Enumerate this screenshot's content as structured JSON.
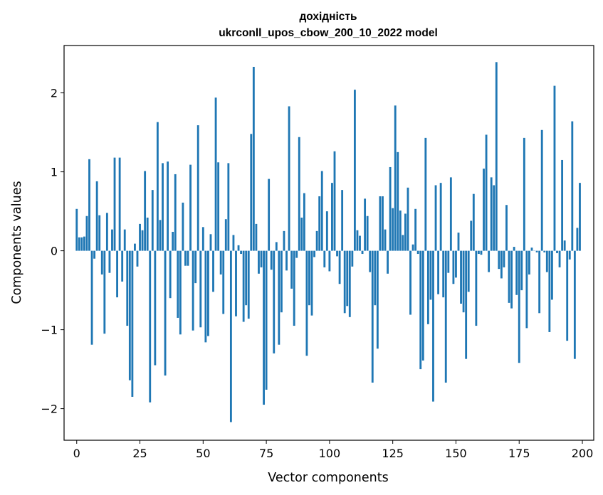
{
  "chart_data": {
    "type": "bar",
    "title": "дохідність",
    "subtitle": "ukrconll_upos_cbow_200_10_2022 model",
    "xlabel": "Vector components",
    "ylabel": "Components values",
    "xlim": [
      -5,
      204.5
    ],
    "ylim": [
      -2.4,
      2.6
    ],
    "xticks": [
      0,
      25,
      50,
      75,
      100,
      125,
      150,
      175,
      200
    ],
    "yticks": [
      -2,
      -1,
      0,
      1,
      2
    ],
    "ytick_labels": [
      "−2",
      "−1",
      "0",
      "1",
      "2"
    ],
    "grid": false,
    "bar_color": "#1f77b4",
    "x": [
      0,
      1,
      2,
      3,
      4,
      5,
      6,
      7,
      8,
      9,
      10,
      11,
      12,
      13,
      14,
      15,
      16,
      17,
      18,
      19,
      20,
      21,
      22,
      23,
      24,
      25,
      26,
      27,
      28,
      29,
      30,
      31,
      32,
      33,
      34,
      35,
      36,
      37,
      38,
      39,
      40,
      41,
      42,
      43,
      44,
      45,
      46,
      47,
      48,
      49,
      50,
      51,
      52,
      53,
      54,
      55,
      56,
      57,
      58,
      59,
      60,
      61,
      62,
      63,
      64,
      65,
      66,
      67,
      68,
      69,
      70,
      71,
      72,
      73,
      74,
      75,
      76,
      77,
      78,
      79,
      80,
      81,
      82,
      83,
      84,
      85,
      86,
      87,
      88,
      89,
      90,
      91,
      92,
      93,
      94,
      95,
      96,
      97,
      98,
      99,
      100,
      101,
      102,
      103,
      104,
      105,
      106,
      107,
      108,
      109,
      110,
      111,
      112,
      113,
      114,
      115,
      116,
      117,
      118,
      119,
      120,
      121,
      122,
      123,
      124,
      125,
      126,
      127,
      128,
      129,
      130,
      131,
      132,
      133,
      134,
      135,
      136,
      137,
      138,
      139,
      140,
      141,
      142,
      143,
      144,
      145,
      146,
      147,
      148,
      149,
      150,
      151,
      152,
      153,
      154,
      155,
      156,
      157,
      158,
      159,
      160,
      161,
      162,
      163,
      164,
      165,
      166,
      167,
      168,
      169,
      170,
      171,
      172,
      173,
      174,
      175,
      176,
      177,
      178,
      179,
      180,
      181,
      182,
      183,
      184,
      185,
      186,
      187,
      188,
      189,
      190,
      191,
      192,
      193,
      194,
      195,
      196,
      197,
      198,
      199
    ],
    "values": [
      0.53,
      0.17,
      0.17,
      0.18,
      0.44,
      1.16,
      -1.19,
      -0.1,
      0.88,
      0.45,
      -0.3,
      -1.05,
      0.48,
      -0.28,
      0.27,
      1.18,
      -0.59,
      1.18,
      -0.39,
      0.27,
      -0.95,
      -1.64,
      -1.85,
      0.09,
      -0.2,
      0.34,
      0.26,
      1.01,
      0.42,
      -1.92,
      0.77,
      -1.45,
      1.63,
      0.39,
      1.11,
      -1.58,
      1.13,
      -0.6,
      0.24,
      0.97,
      -0.85,
      -1.06,
      0.61,
      -0.19,
      -0.19,
      1.09,
      -1.01,
      -0.41,
      1.59,
      -0.97,
      0.3,
      -1.16,
      -1.08,
      0.21,
      -0.52,
      1.94,
      1.12,
      -0.3,
      -0.8,
      0.4,
      1.11,
      -2.17,
      0.2,
      -0.83,
      0.07,
      -0.04,
      -0.9,
      -0.69,
      -0.86,
      1.48,
      2.33,
      0.34,
      -0.29,
      -0.21,
      -1.95,
      -1.76,
      0.91,
      -0.24,
      -1.3,
      0.11,
      -1.19,
      -0.78,
      0.25,
      -0.25,
      1.83,
      -0.48,
      -0.95,
      -0.09,
      1.44,
      0.42,
      0.73,
      -1.33,
      -0.69,
      -0.82,
      -0.08,
      0.25,
      0.69,
      1.01,
      -0.21,
      0.5,
      -0.26,
      0.86,
      1.26,
      -0.07,
      -0.42,
      0.77,
      -0.79,
      -0.7,
      -0.84,
      -0.2,
      2.04,
      0.26,
      0.19,
      -0.04,
      0.66,
      0.44,
      -0.27,
      -1.67,
      -0.69,
      -1.24,
      0.69,
      0.69,
      0.27,
      -0.29,
      1.06,
      0.54,
      1.84,
      1.25,
      0.51,
      0.2,
      0.47,
      0.8,
      -0.81,
      0.08,
      0.53,
      -0.04,
      -1.5,
      -1.39,
      1.43,
      -0.93,
      -0.62,
      -1.91,
      0.83,
      -0.55,
      0.86,
      -0.59,
      -1.67,
      -0.28,
      0.93,
      -0.42,
      -0.34,
      0.23,
      -0.67,
      -0.78,
      -1.37,
      -0.52,
      0.38,
      0.72,
      -0.95,
      -0.04,
      -0.05,
      1.04,
      1.47,
      -0.27,
      0.93,
      0.83,
      2.39,
      -0.23,
      -0.35,
      -0.21,
      0.58,
      -0.66,
      -0.73,
      0.05,
      -0.56,
      -1.42,
      -0.5,
      1.43,
      -0.98,
      -0.3,
      0.04,
      0.0,
      -0.02,
      -0.79,
      1.53,
      -0.02,
      -0.27,
      -1.03,
      -0.62,
      2.09,
      -0.03,
      -0.21,
      1.15,
      0.13,
      -1.14,
      -0.11,
      1.64,
      -1.37,
      0.29,
      0.86
    ]
  }
}
